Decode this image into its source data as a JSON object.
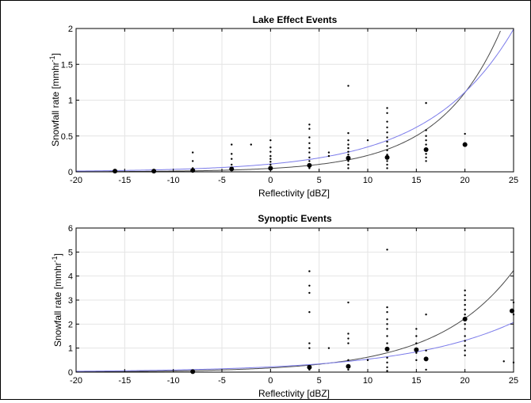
{
  "chart_data": [
    {
      "type": "scatter",
      "title": "Lake Effect Events",
      "xlabel": "Reflectivity [dBZ]",
      "ylabel": "Snowfall rate [mmhr^-1]",
      "xlim": [
        -20,
        25
      ],
      "ylim": [
        0,
        2
      ],
      "xticks": [
        -20,
        -15,
        -10,
        -5,
        0,
        5,
        10,
        15,
        20,
        25
      ],
      "yticks": [
        0,
        0.5,
        1,
        1.5,
        2
      ],
      "ytick_labels": [
        "0",
        "0.5",
        "1",
        "1.5",
        "2"
      ],
      "grid": true,
      "points": [
        {
          "x": -8,
          "y": 0.27
        },
        {
          "x": -8,
          "y": 0.15
        },
        {
          "x": -8,
          "y": 0.05
        },
        {
          "x": -4,
          "y": 0.38
        },
        {
          "x": -4,
          "y": 0.25
        },
        {
          "x": -4,
          "y": 0.18
        },
        {
          "x": -4,
          "y": 0.1
        },
        {
          "x": -2,
          "y": 0.38
        },
        {
          "x": 0,
          "y": 0.44
        },
        {
          "x": 0,
          "y": 0.34
        },
        {
          "x": 0,
          "y": 0.28
        },
        {
          "x": 0,
          "y": 0.22
        },
        {
          "x": 0,
          "y": 0.18
        },
        {
          "x": 0,
          "y": 0.14
        },
        {
          "x": 0,
          "y": 0.1
        },
        {
          "x": 0,
          "y": 0.07
        },
        {
          "x": 4,
          "y": 0.66
        },
        {
          "x": 4,
          "y": 0.6
        },
        {
          "x": 4,
          "y": 0.48
        },
        {
          "x": 4,
          "y": 0.4
        },
        {
          "x": 4,
          "y": 0.33
        },
        {
          "x": 4,
          "y": 0.27
        },
        {
          "x": 4,
          "y": 0.2
        },
        {
          "x": 4,
          "y": 0.15
        },
        {
          "x": 4,
          "y": 0.05
        },
        {
          "x": 6,
          "y": 0.27
        },
        {
          "x": 6,
          "y": 0.22
        },
        {
          "x": 8,
          "y": 1.2
        },
        {
          "x": 8,
          "y": 0.54
        },
        {
          "x": 8,
          "y": 0.44
        },
        {
          "x": 8,
          "y": 0.38
        },
        {
          "x": 8,
          "y": 0.33
        },
        {
          "x": 8,
          "y": 0.28
        },
        {
          "x": 8,
          "y": 0.24
        },
        {
          "x": 8,
          "y": 0.2
        },
        {
          "x": 8,
          "y": 0.15
        },
        {
          "x": 8,
          "y": 0.1
        },
        {
          "x": 8,
          "y": 0.05
        },
        {
          "x": 10,
          "y": 0.44
        },
        {
          "x": 12,
          "y": 0.89
        },
        {
          "x": 12,
          "y": 0.82
        },
        {
          "x": 12,
          "y": 0.7
        },
        {
          "x": 12,
          "y": 0.62
        },
        {
          "x": 12,
          "y": 0.55
        },
        {
          "x": 12,
          "y": 0.48
        },
        {
          "x": 12,
          "y": 0.42
        },
        {
          "x": 12,
          "y": 0.36
        },
        {
          "x": 12,
          "y": 0.3
        },
        {
          "x": 12,
          "y": 0.24
        },
        {
          "x": 12,
          "y": 0.15
        },
        {
          "x": 12,
          "y": 0.1
        },
        {
          "x": 12,
          "y": 0.05
        },
        {
          "x": 16,
          "y": 0.96
        },
        {
          "x": 16,
          "y": 0.58
        },
        {
          "x": 16,
          "y": 0.5
        },
        {
          "x": 16,
          "y": 0.44
        },
        {
          "x": 16,
          "y": 0.38
        },
        {
          "x": 16,
          "y": 0.25
        },
        {
          "x": 16,
          "y": 0.2
        },
        {
          "x": 16,
          "y": 0.15
        },
        {
          "x": 20,
          "y": 0.53
        },
        {
          "x": 20,
          "y": 0.4
        }
      ],
      "means": [
        {
          "x": -16,
          "y": 0.01
        },
        {
          "x": -12,
          "y": 0.01
        },
        {
          "x": -8,
          "y": 0.02
        },
        {
          "x": -4,
          "y": 0.04
        },
        {
          "x": 0,
          "y": 0.05
        },
        {
          "x": 4,
          "y": 0.09
        },
        {
          "x": 8,
          "y": 0.19
        },
        {
          "x": 12,
          "y": 0.2
        },
        {
          "x": 16,
          "y": 0.31
        },
        {
          "x": 20,
          "y": 0.38
        }
      ],
      "curves": [
        {
          "color": "#4a4a4a",
          "a": 0.0473,
          "b": 0.1576
        },
        {
          "color": "#7b7bea",
          "a": 0.1084,
          "b": 0.1164
        }
      ]
    },
    {
      "type": "scatter",
      "title": "Synoptic Events",
      "xlabel": "Reflectivity [dBZ]",
      "ylabel": "Snowfall rate [mmhr^-1]",
      "xlim": [
        -20,
        25
      ],
      "ylim": [
        0,
        6
      ],
      "xticks": [
        -20,
        -15,
        -10,
        -5,
        0,
        5,
        10,
        15,
        20,
        25
      ],
      "yticks": [
        0,
        1,
        2,
        3,
        4,
        5,
        6
      ],
      "ytick_labels": [
        "0",
        "1",
        "2",
        "3",
        "4",
        "5",
        "6"
      ],
      "grid": true,
      "points": [
        {
          "x": 4,
          "y": 4.2
        },
        {
          "x": 4,
          "y": 3.6
        },
        {
          "x": 4,
          "y": 3.3
        },
        {
          "x": 4,
          "y": 2.5
        },
        {
          "x": 4,
          "y": 1.2
        },
        {
          "x": 4,
          "y": 1.0
        },
        {
          "x": 4,
          "y": 0.1
        },
        {
          "x": 6,
          "y": 1.0
        },
        {
          "x": 8,
          "y": 2.9
        },
        {
          "x": 8,
          "y": 1.6
        },
        {
          "x": 8,
          "y": 1.4
        },
        {
          "x": 8,
          "y": 1.2
        },
        {
          "x": 8,
          "y": 0.5
        },
        {
          "x": 8,
          "y": 0.1
        },
        {
          "x": 10,
          "y": 0.5
        },
        {
          "x": 12,
          "y": 5.1
        },
        {
          "x": 12,
          "y": 2.7
        },
        {
          "x": 12,
          "y": 2.5
        },
        {
          "x": 12,
          "y": 2.2
        },
        {
          "x": 12,
          "y": 2.0
        },
        {
          "x": 12,
          "y": 1.8
        },
        {
          "x": 12,
          "y": 1.5
        },
        {
          "x": 12,
          "y": 1.2
        },
        {
          "x": 12,
          "y": 0.9
        },
        {
          "x": 12,
          "y": 0.6
        },
        {
          "x": 12,
          "y": 0.4
        },
        {
          "x": 12,
          "y": 0.2
        },
        {
          "x": 12,
          "y": 0.05
        },
        {
          "x": 15,
          "y": 1.8
        },
        {
          "x": 15,
          "y": 1.5
        },
        {
          "x": 15,
          "y": 1.2
        },
        {
          "x": 15,
          "y": 0.8
        },
        {
          "x": 15,
          "y": 0.5
        },
        {
          "x": 16,
          "y": 2.4
        },
        {
          "x": 16,
          "y": 0.9
        },
        {
          "x": 16,
          "y": 0.1
        },
        {
          "x": 20,
          "y": 3.4
        },
        {
          "x": 20,
          "y": 3.2
        },
        {
          "x": 20,
          "y": 3.0
        },
        {
          "x": 20,
          "y": 2.8
        },
        {
          "x": 20,
          "y": 2.6
        },
        {
          "x": 20,
          "y": 2.4
        },
        {
          "x": 20,
          "y": 2.0
        },
        {
          "x": 20,
          "y": 1.8
        },
        {
          "x": 20,
          "y": 1.5
        },
        {
          "x": 20,
          "y": 1.3
        },
        {
          "x": 20,
          "y": 1.1
        },
        {
          "x": 20,
          "y": 0.9
        },
        {
          "x": 20,
          "y": 0.7
        },
        {
          "x": 24,
          "y": 0.45
        },
        {
          "x": 25,
          "y": 2.9
        },
        {
          "x": 25,
          "y": 2.4
        },
        {
          "x": 25,
          "y": 0.4
        }
      ],
      "means": [
        {
          "x": -8,
          "y": 0.02
        },
        {
          "x": 4,
          "y": 0.2
        },
        {
          "x": 8,
          "y": 0.24
        },
        {
          "x": 12,
          "y": 0.96
        },
        {
          "x": 15,
          "y": 0.93
        },
        {
          "x": 16,
          "y": 0.55
        },
        {
          "x": 20,
          "y": 2.21
        },
        {
          "x": 25,
          "y": 2.55
        }
      ],
      "curves": [
        {
          "color": "#4a4a4a",
          "a": 0.1738,
          "b": 0.1277
        },
        {
          "color": "#7b7bea",
          "a": 0.2187,
          "b": 0.0899
        }
      ]
    }
  ]
}
